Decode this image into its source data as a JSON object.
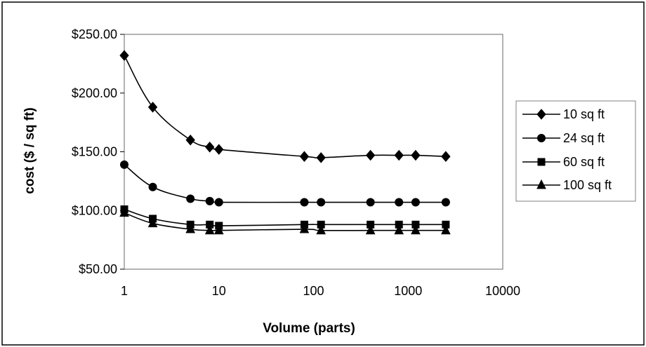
{
  "chart_data": {
    "type": "line",
    "title": "",
    "xlabel": "Volume (parts)",
    "ylabel": "cost ($ / sq ft)",
    "x_scale": "log",
    "xlim": [
      1,
      10000
    ],
    "ylim": [
      50,
      250
    ],
    "x_ticks": [
      1,
      10,
      100,
      1000,
      10000
    ],
    "x_tick_labels": [
      "1",
      "10",
      "100",
      "1000",
      "10000"
    ],
    "y_ticks": [
      50,
      100,
      150,
      200,
      250
    ],
    "y_tick_labels": [
      "$50.00",
      "$100.00",
      "$150.00",
      "$200.00",
      "$250.00"
    ],
    "grid": false,
    "legend_position": "right",
    "line_color": "#000000",
    "series": [
      {
        "name": "10 sq ft",
        "marker": "diamond",
        "x": [
          1,
          2,
          5,
          8,
          10,
          80,
          120,
          400,
          800,
          1200,
          2500
        ],
        "y": [
          232,
          188,
          160,
          154,
          152,
          146,
          145,
          147,
          147,
          147,
          146
        ]
      },
      {
        "name": "24 sq ft",
        "marker": "circle",
        "x": [
          1,
          2,
          5,
          8,
          10,
          80,
          120,
          400,
          800,
          1200,
          2500
        ],
        "y": [
          139,
          120,
          110,
          108,
          107,
          107,
          107,
          107,
          107,
          107,
          107
        ]
      },
      {
        "name": "60 sq ft",
        "marker": "square",
        "x": [
          1,
          2,
          5,
          8,
          10,
          80,
          120,
          400,
          800,
          1200,
          2500
        ],
        "y": [
          101,
          93,
          88,
          88,
          87,
          88,
          88,
          88,
          88,
          88,
          88
        ]
      },
      {
        "name": "100 sq ft",
        "marker": "triangle",
        "x": [
          1,
          2,
          5,
          8,
          10,
          80,
          120,
          400,
          800,
          1200,
          2500
        ],
        "y": [
          98,
          89,
          84,
          83,
          83,
          84,
          83,
          83,
          83,
          83,
          83
        ]
      }
    ]
  }
}
